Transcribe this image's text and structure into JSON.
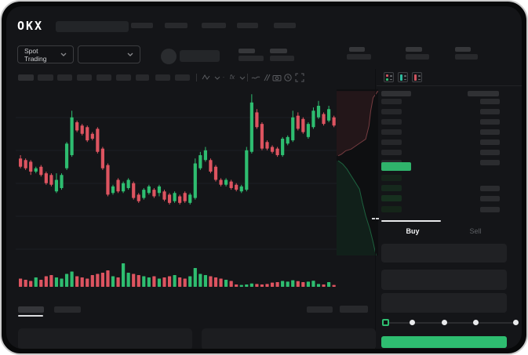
{
  "brand": {
    "logo_text": "OKX"
  },
  "market_selector": {
    "label": "Spot Trading"
  },
  "order_panel": {
    "buy_tab": "Buy",
    "sell_tab": "Sell",
    "buy_button_label": "",
    "slider_steps": 5
  },
  "order_book": {
    "ask_rows": 7,
    "bid_rows": 4,
    "bid_amount_rows": 3,
    "bid_row_colors": [
      "#15231a",
      "#16291d",
      "#17301f",
      "#152519"
    ],
    "last_price_highlight_color": "#2fb36b"
  },
  "colors": {
    "green": "#2ebd70",
    "red": "#dd5460",
    "white": "#e9eaec",
    "grid": "#1d1f23",
    "bar_gray": "#26272a",
    "bar_gray_right": "#2b2c2f",
    "bar_header": "#303134",
    "depth_ask_fill": "rgba(221,84,96,0.10)",
    "depth_ask_line": "rgba(230,110,118,0.45)",
    "depth_bid_fill": "rgba(46,189,112,0.10)",
    "depth_bid_line": "rgba(46,189,112,0.45)"
  },
  "chart_data": {
    "type": "candlestick",
    "title": "",
    "xlabel": "",
    "ylabel": "",
    "value_scale": "normalized 0-100 (no axis labels visible in screenshot)",
    "gridlines_local_y": [
      38,
      80,
      122,
      164,
      206
    ],
    "candles": [
      [
        58,
        60,
        52,
        53,
        35
      ],
      [
        57,
        58,
        51,
        52,
        30
      ],
      [
        56,
        57,
        48,
        50,
        25
      ],
      [
        50,
        53,
        49,
        52,
        40
      ],
      [
        53,
        54,
        47,
        48,
        30
      ],
      [
        49,
        50,
        42,
        43,
        45
      ],
      [
        48,
        49,
        41,
        42,
        50
      ],
      [
        38,
        49,
        37,
        45,
        40
      ],
      [
        40,
        49,
        39,
        48,
        35
      ],
      [
        52,
        68,
        51,
        67,
        55
      ],
      [
        60,
        87,
        59,
        83,
        65
      ],
      [
        80,
        81,
        74,
        75,
        45
      ],
      [
        78,
        79,
        72,
        73,
        40
      ],
      [
        77,
        78,
        68,
        69,
        35
      ],
      [
        73,
        74,
        69,
        70,
        50
      ],
      [
        76,
        77,
        61,
        62,
        55
      ],
      [
        64,
        65,
        51,
        52,
        60
      ],
      [
        54,
        55,
        35,
        36,
        70
      ],
      [
        37,
        42,
        36,
        41,
        45
      ],
      [
        45,
        46,
        37,
        38,
        40
      ],
      [
        38,
        44,
        37,
        43,
        100
      ],
      [
        40,
        46,
        39,
        45,
        60
      ],
      [
        43,
        44,
        33,
        34,
        55
      ],
      [
        36,
        37,
        31,
        32,
        50
      ],
      [
        34,
        40,
        33,
        39,
        45
      ],
      [
        37,
        42,
        36,
        41,
        40
      ],
      [
        39,
        40,
        34,
        35,
        45
      ],
      [
        37,
        42,
        35,
        41,
        35
      ],
      [
        38,
        39,
        32,
        33,
        40
      ],
      [
        36,
        37,
        30,
        31,
        45
      ],
      [
        32,
        38,
        31,
        37,
        50
      ],
      [
        35,
        36,
        30,
        31,
        40
      ],
      [
        37,
        38,
        31,
        32,
        35
      ],
      [
        31,
        37,
        30,
        36,
        45
      ],
      [
        34,
        58,
        33,
        55,
        80
      ],
      [
        52,
        62,
        51,
        60,
        55
      ],
      [
        57,
        65,
        56,
        63,
        50
      ],
      [
        57,
        58,
        49,
        50,
        45
      ],
      [
        53,
        54,
        44,
        45,
        40
      ],
      [
        45,
        46,
        41,
        42,
        35
      ],
      [
        42,
        46,
        41,
        45,
        30
      ],
      [
        44,
        45,
        39,
        40,
        25
      ],
      [
        42,
        43,
        38,
        39,
        10
      ],
      [
        38,
        42,
        37,
        41,
        8
      ],
      [
        39,
        65,
        38,
        63,
        10
      ],
      [
        62,
        97,
        61,
        92,
        14
      ],
      [
        86,
        88,
        76,
        77,
        12
      ],
      [
        79,
        80,
        63,
        64,
        10
      ],
      [
        68,
        69,
        63,
        64,
        12
      ],
      [
        65,
        66,
        61,
        62,
        18
      ],
      [
        64,
        65,
        59,
        60,
        20
      ],
      [
        60,
        71,
        59,
        70,
        25
      ],
      [
        67,
        72,
        66,
        71,
        22
      ],
      [
        69,
        87,
        68,
        83,
        28
      ],
      [
        84,
        86,
        75,
        76,
        24
      ],
      [
        82,
        83,
        73,
        74,
        20
      ],
      [
        71,
        80,
        70,
        79,
        22
      ],
      [
        77,
        89,
        76,
        87,
        26
      ],
      [
        83,
        93,
        82,
        90,
        12
      ],
      [
        85,
        86,
        78,
        79,
        10
      ],
      [
        81,
        90,
        80,
        88,
        20
      ],
      [
        83,
        84,
        77,
        78,
        8
      ]
    ],
    "depth": {
      "asks": [
        [
          1,
          0.01
        ],
        [
          0.88,
          0.05
        ],
        [
          0.82,
          0.13
        ],
        [
          0.78,
          0.22
        ],
        [
          0.7,
          0.3
        ],
        [
          0.52,
          0.33
        ],
        [
          0.35,
          0.36
        ],
        [
          0.22,
          0.37
        ],
        [
          0.12,
          0.39
        ],
        [
          0.04,
          0.4
        ]
      ],
      "bids": [
        [
          0.04,
          0.43
        ],
        [
          0.15,
          0.45
        ],
        [
          0.25,
          0.48
        ],
        [
          0.35,
          0.52
        ],
        [
          0.45,
          0.56
        ],
        [
          0.55,
          0.6
        ],
        [
          0.62,
          0.68
        ],
        [
          0.7,
          0.76
        ],
        [
          0.8,
          0.84
        ],
        [
          0.88,
          0.92
        ],
        [
          0.95,
          1.0
        ]
      ]
    }
  }
}
